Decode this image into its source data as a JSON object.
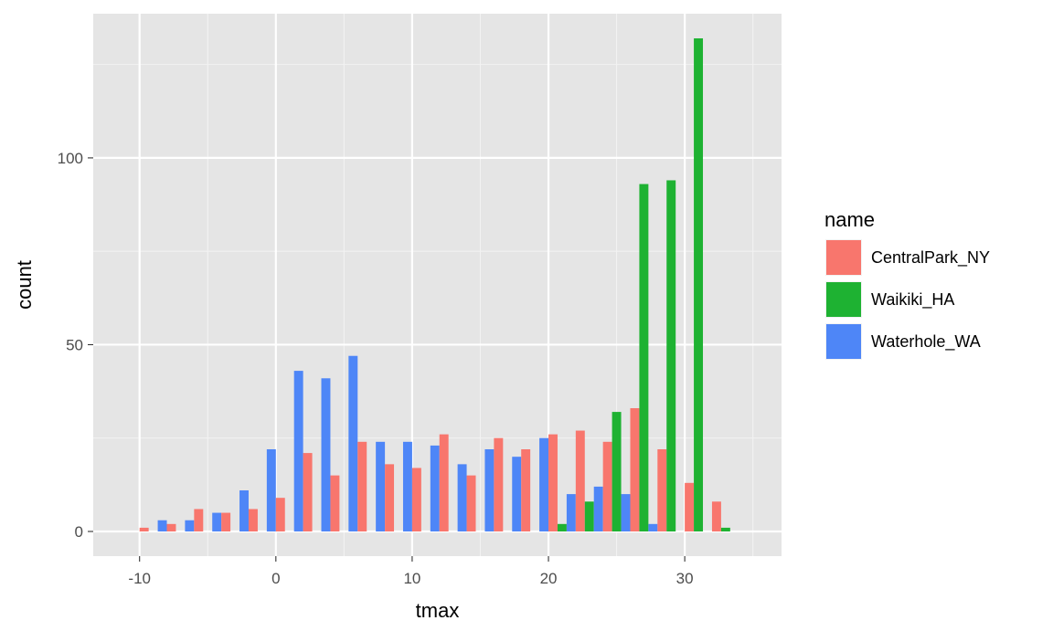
{
  "chart_data": {
    "type": "bar",
    "xlabel": "tmax",
    "ylabel": "count",
    "xlim": [
      -13.4,
      37.1
    ],
    "ylim": [
      -6.6,
      138.6
    ],
    "xticks": [
      -10,
      0,
      10,
      20,
      30
    ],
    "xtick_labels": [
      "-10",
      "0",
      "10",
      "20",
      "30"
    ],
    "yticks": [
      0,
      50,
      100
    ],
    "ytick_labels": [
      "0",
      "50",
      "100"
    ],
    "grid": true,
    "legend": {
      "title": "name",
      "position": "right"
    },
    "bin_width": 2,
    "bin_centers": [
      -9.0,
      -7.0,
      -5.0,
      -3.0,
      -1.0,
      1.0,
      3.0,
      5.0,
      7.0,
      9.0,
      11.0,
      13.0,
      15.0,
      17.0,
      19.0,
      21.0,
      23.0,
      25.0,
      27.0,
      29.0,
      31.0,
      33.0
    ],
    "series": [
      {
        "name": "CentralPark_NY",
        "color": "#F8766D",
        "values": [
          1,
          2,
          6,
          5,
          6,
          9,
          21,
          15,
          24,
          18,
          17,
          26,
          15,
          25,
          22,
          26,
          27,
          24,
          33,
          22,
          13,
          8
        ]
      },
      {
        "name": "Waikiki_HA",
        "color": "#1EB232",
        "values": [
          0,
          0,
          0,
          0,
          0,
          0,
          0,
          0,
          0,
          0,
          0,
          0,
          0,
          0,
          0,
          2,
          8,
          32,
          93,
          94,
          132,
          1
        ]
      },
      {
        "name": "Waterhole_WA",
        "color": "#4E86F7",
        "values": [
          3,
          3,
          5,
          11,
          22,
          43,
          41,
          47,
          24,
          24,
          23,
          18,
          22,
          20,
          25,
          10,
          12,
          10,
          2,
          0,
          0,
          0
        ]
      }
    ]
  },
  "colors": {
    "panel_bg": "#E5E5E5",
    "grid_major": "#FFFFFF",
    "grid_minor": "#F2F2F2"
  }
}
